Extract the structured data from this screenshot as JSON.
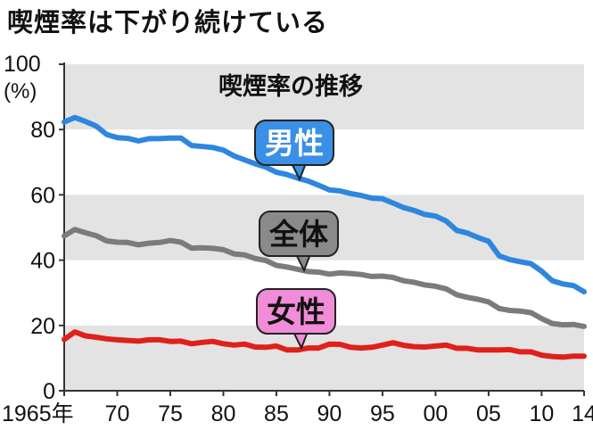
{
  "headline": "喫煙率は下がり続けている",
  "chart_data": {
    "type": "line",
    "title": "喫煙率の推移",
    "ylabel_top": "100",
    "ylabel_unit": "(%)",
    "ylim": [
      0,
      100
    ],
    "yticks": [
      0,
      20,
      40,
      60,
      80,
      100
    ],
    "y_tick_labels": [
      "0",
      "20",
      "40",
      "60",
      "80",
      ""
    ],
    "xlim": [
      1965,
      2014
    ],
    "xticks": [
      {
        "x": 1965,
        "label": "1965年"
      },
      {
        "x": 1970,
        "label": "70"
      },
      {
        "x": 1975,
        "label": "75"
      },
      {
        "x": 1980,
        "label": "80"
      },
      {
        "x": 1985,
        "label": "85"
      },
      {
        "x": 1990,
        "label": "90"
      },
      {
        "x": 1995,
        "label": "95"
      },
      {
        "x": 2000,
        "label": "00"
      },
      {
        "x": 2005,
        "label": "05"
      },
      {
        "x": 2010,
        "label": "10"
      },
      {
        "x": 2014,
        "label": "14"
      }
    ],
    "grid": "alternating gray bands",
    "x": [
      1965,
      1966,
      1967,
      1968,
      1969,
      1970,
      1971,
      1972,
      1973,
      1974,
      1975,
      1976,
      1977,
      1978,
      1979,
      1980,
      1981,
      1982,
      1983,
      1984,
      1985,
      1986,
      1987,
      1988,
      1989,
      1990,
      1991,
      1992,
      1993,
      1994,
      1995,
      1996,
      1997,
      1998,
      1999,
      2000,
      2001,
      2002,
      2003,
      2004,
      2005,
      2006,
      2007,
      2008,
      2009,
      2010,
      2011,
      2012,
      2013,
      2014
    ],
    "series": [
      {
        "name": "男性",
        "color": "#2e86de",
        "label_box_color": "#3a8fe6",
        "label_text_color": "#ffffff",
        "values": [
          82.3,
          83.7,
          82.5,
          81.1,
          78.5,
          77.5,
          77.3,
          76.5,
          77.2,
          77.2,
          77.4,
          77.4,
          75.1,
          74.8,
          74.5,
          73.7,
          71.9,
          70.7,
          69.5,
          68.5,
          66.9,
          66.2,
          65.1,
          64.2,
          62.9,
          61.5,
          61.2,
          60.4,
          59.8,
          59.0,
          58.8,
          57.5,
          56.1,
          55.2,
          54.0,
          53.5,
          52.0,
          49.1,
          48.3,
          46.9,
          45.8,
          41.3,
          40.2,
          39.5,
          38.9,
          36.6,
          33.7,
          32.7,
          32.2,
          30.3
        ]
      },
      {
        "name": "全体",
        "color": "#7b7b7b",
        "label_box_color": "#8a8a8a",
        "label_text_color": "#111111",
        "values": [
          47.4,
          49.4,
          48.4,
          47.5,
          45.9,
          45.5,
          45.4,
          44.7,
          45.2,
          45.4,
          46.0,
          45.5,
          43.7,
          43.8,
          43.6,
          43.2,
          41.9,
          41.6,
          40.5,
          39.9,
          38.4,
          37.9,
          37.2,
          36.5,
          36.3,
          35.7,
          36.1,
          35.9,
          35.6,
          35.0,
          35.1,
          34.7,
          33.7,
          33.2,
          32.4,
          32.0,
          31.2,
          29.4,
          28.6,
          28.0,
          27.2,
          25.2,
          24.6,
          24.4,
          23.9,
          22.1,
          20.6,
          20.2,
          20.3,
          19.7
        ]
      },
      {
        "name": "女性",
        "color": "#e0201a",
        "label_box_color": "#f08cd8",
        "label_text_color": "#111111",
        "values": [
          15.7,
          18.0,
          16.8,
          16.4,
          15.9,
          15.6,
          15.4,
          15.2,
          15.6,
          15.6,
          15.1,
          15.2,
          14.4,
          14.8,
          15.1,
          14.4,
          14.0,
          14.3,
          13.4,
          13.3,
          13.7,
          12.5,
          12.5,
          13.1,
          13.1,
          14.3,
          14.2,
          13.3,
          13.1,
          13.3,
          14.0,
          14.7,
          13.9,
          13.5,
          13.4,
          13.7,
          14.0,
          13.0,
          13.0,
          12.5,
          12.5,
          12.5,
          12.6,
          11.9,
          11.9,
          10.9,
          10.5,
          10.3,
          10.6,
          10.6
        ]
      }
    ]
  }
}
